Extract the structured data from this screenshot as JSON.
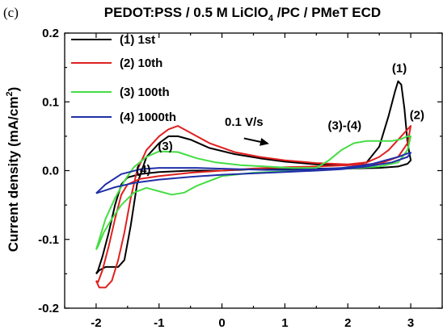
{
  "panel_label": "(c)",
  "chart_data": {
    "type": "line",
    "title": {
      "prefix": "PEDOT:PSS / 0.5 M LiClO",
      "sub": "4",
      "suffix": " /PC / PMeT ECD"
    },
    "xlabel": "",
    "ylabel": {
      "text": "Current density (mA/cm",
      "sup": "2",
      "close": ")"
    },
    "xlim": [
      -2.5,
      3.5
    ],
    "ylim": [
      -0.2,
      0.2
    ],
    "xticks": [
      -2,
      -1,
      0,
      1,
      2,
      3
    ],
    "xtick_labels": [
      "-2",
      "-1",
      "0",
      "1",
      "2",
      "3"
    ],
    "yticks": [
      -0.2,
      -0.1,
      0.0,
      0.1,
      0.2
    ],
    "ytick_labels": [
      "-0.2",
      "-0.1",
      "0.0",
      "0.1",
      "0.2"
    ],
    "grid": false,
    "legend_position": "top-left",
    "series": [
      {
        "name": "(1) 1st",
        "color": "#000000",
        "x": [
          -2.0,
          -1.95,
          -1.85,
          -1.75,
          -1.65,
          -1.55,
          -1.45,
          -1.35,
          -1.2,
          -1.0,
          -0.85,
          -0.7,
          -0.5,
          -0.2,
          0.2,
          0.6,
          1.0,
          1.5,
          2.0,
          2.3,
          2.5,
          2.65,
          2.75,
          2.8,
          2.85,
          2.9,
          2.95,
          3.0,
          2.95,
          2.8,
          2.5,
          2.0,
          1.5,
          1.0,
          0.5,
          0.0,
          -0.5,
          -1.0,
          -1.3,
          -1.5,
          -1.6,
          -1.7,
          -1.8,
          -1.9,
          -1.97,
          -2.0
        ],
        "y": [
          -0.15,
          -0.145,
          -0.14,
          -0.14,
          -0.14,
          -0.13,
          -0.08,
          -0.02,
          0.02,
          0.04,
          0.05,
          0.05,
          0.045,
          0.033,
          0.024,
          0.018,
          0.013,
          0.009,
          0.008,
          0.012,
          0.035,
          0.08,
          0.115,
          0.13,
          0.125,
          0.09,
          0.04,
          0.015,
          0.01,
          0.006,
          0.004,
          0.003,
          0.003,
          0.002,
          0.002,
          0.0,
          0.0,
          -0.002,
          -0.005,
          -0.01,
          -0.02,
          -0.05,
          -0.09,
          -0.125,
          -0.145,
          -0.15
        ]
      },
      {
        "name": "(2) 10th",
        "color": "#e02020",
        "x": [
          -2.0,
          -1.95,
          -1.85,
          -1.75,
          -1.65,
          -1.55,
          -1.45,
          -1.35,
          -1.2,
          -1.0,
          -0.85,
          -0.7,
          -0.5,
          -0.2,
          0.2,
          0.6,
          1.0,
          1.5,
          2.0,
          2.3,
          2.5,
          2.65,
          2.75,
          2.85,
          2.95,
          3.0,
          2.95,
          2.8,
          2.5,
          2.0,
          1.5,
          1.0,
          0.5,
          0.0,
          -0.5,
          -1.0,
          -1.3,
          -1.5,
          -1.6,
          -1.7,
          -1.8,
          -1.9,
          -1.97,
          -2.0
        ],
        "y": [
          -0.16,
          -0.17,
          -0.17,
          -0.16,
          -0.13,
          -0.09,
          -0.04,
          0.0,
          0.03,
          0.05,
          0.06,
          0.065,
          0.055,
          0.04,
          0.027,
          0.02,
          0.015,
          0.011,
          0.009,
          0.012,
          0.02,
          0.03,
          0.04,
          0.05,
          0.06,
          0.065,
          0.04,
          0.02,
          0.01,
          0.008,
          0.006,
          0.005,
          0.003,
          0.0,
          -0.003,
          -0.008,
          -0.012,
          -0.02,
          -0.035,
          -0.07,
          -0.11,
          -0.145,
          -0.162,
          -0.16
        ]
      },
      {
        "name": "(3) 100th",
        "color": "#44dd44",
        "x": [
          -2.0,
          -1.95,
          -1.85,
          -1.7,
          -1.55,
          -1.4,
          -1.2,
          -1.0,
          -0.7,
          -0.4,
          -0.1,
          0.3,
          0.7,
          1.1,
          1.5,
          1.7,
          1.9,
          2.1,
          2.3,
          2.5,
          2.7,
          2.85,
          2.95,
          3.0,
          2.95,
          2.8,
          2.5,
          2.0,
          1.5,
          1.0,
          0.5,
          0.0,
          -0.4,
          -0.6,
          -0.8,
          -1.0,
          -1.2,
          -1.4,
          -1.6,
          -1.75,
          -1.88,
          -1.97,
          -2.0
        ],
        "y": [
          -0.115,
          -0.1,
          -0.07,
          -0.04,
          -0.015,
          0.005,
          0.02,
          0.028,
          0.027,
          0.018,
          0.012,
          0.008,
          0.006,
          0.004,
          0.004,
          0.015,
          0.03,
          0.04,
          0.043,
          0.043,
          0.043,
          0.046,
          0.05,
          0.05,
          0.03,
          0.012,
          0.006,
          0.003,
          0.001,
          -0.001,
          -0.003,
          -0.008,
          -0.022,
          -0.032,
          -0.035,
          -0.03,
          -0.025,
          -0.032,
          -0.05,
          -0.07,
          -0.09,
          -0.11,
          -0.115
        ]
      },
      {
        "name": "(4) 1000th",
        "color": "#1f2fa8",
        "x": [
          -2.0,
          -1.85,
          -1.6,
          -1.3,
          -1.0,
          -0.7,
          -0.4,
          -0.1,
          0.3,
          0.7,
          1.1,
          1.5,
          1.9,
          2.2,
          2.4,
          2.6,
          2.8,
          2.95,
          3.0,
          2.95,
          2.7,
          2.3,
          1.9,
          1.5,
          1.0,
          0.5,
          0.0,
          -0.5,
          -1.0,
          -1.4,
          -1.7,
          -1.9,
          -2.0
        ],
        "y": [
          -0.033,
          -0.02,
          -0.005,
          0.002,
          0.004,
          0.004,
          0.004,
          0.003,
          0.002,
          0.001,
          0.001,
          0.002,
          0.004,
          0.007,
          0.01,
          0.015,
          0.02,
          0.025,
          0.026,
          0.02,
          0.012,
          0.006,
          0.002,
          0.0,
          -0.002,
          -0.004,
          -0.006,
          -0.009,
          -0.013,
          -0.018,
          -0.024,
          -0.03,
          -0.033
        ]
      }
    ],
    "annotations": [
      {
        "id": "peak-1",
        "text": "(1)",
        "x": 2.82,
        "y": 0.143
      },
      {
        "id": "peak-2",
        "text": "(2)",
        "x": 3.1,
        "y": 0.075
      },
      {
        "id": "peak-3-4",
        "text": "(3)-(4)",
        "x": 1.95,
        "y": 0.06
      },
      {
        "id": "label-3",
        "text": "(3)",
        "x": -0.9,
        "y": 0.03
      },
      {
        "id": "label-4",
        "text": "(4)",
        "x": -1.25,
        "y": -0.004
      },
      {
        "id": "scan-rate",
        "text": "0.1 V/s",
        "x": 0.35,
        "y": 0.065
      }
    ],
    "arrow": {
      "x1": 0.35,
      "y1": 0.047,
      "x2": 0.75,
      "y2": 0.039
    }
  }
}
